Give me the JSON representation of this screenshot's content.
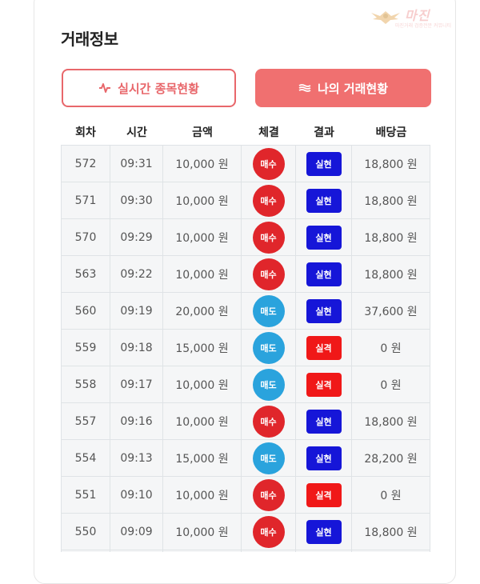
{
  "watermark": {
    "text": "마진",
    "sub": "마진거래 검증전문 커뮤니티"
  },
  "section_title": "거래정보",
  "buttons": {
    "live_label": "실시간 종목현황",
    "mine_label": "나의 거래현황"
  },
  "columns": [
    "회차",
    "시간",
    "금액",
    "체결",
    "결과",
    "배당금"
  ],
  "colors": {
    "buy": "#e0262b",
    "sell": "#2aa3dd",
    "win": "#1616d8",
    "lose": "#f01818",
    "accent": "#f07070"
  },
  "rows": [
    {
      "round": "572",
      "time": "09:31",
      "amount": "10,000 원",
      "trade": "매수",
      "trade_type": "buy",
      "result": "실현",
      "result_type": "win",
      "payout": "18,800 원"
    },
    {
      "round": "571",
      "time": "09:30",
      "amount": "10,000 원",
      "trade": "매수",
      "trade_type": "buy",
      "result": "실현",
      "result_type": "win",
      "payout": "18,800 원"
    },
    {
      "round": "570",
      "time": "09:29",
      "amount": "10,000 원",
      "trade": "매수",
      "trade_type": "buy",
      "result": "실현",
      "result_type": "win",
      "payout": "18,800 원"
    },
    {
      "round": "563",
      "time": "09:22",
      "amount": "10,000 원",
      "trade": "매수",
      "trade_type": "buy",
      "result": "실현",
      "result_type": "win",
      "payout": "18,800 원"
    },
    {
      "round": "560",
      "time": "09:19",
      "amount": "20,000 원",
      "trade": "매도",
      "trade_type": "sell",
      "result": "실현",
      "result_type": "win",
      "payout": "37,600 원"
    },
    {
      "round": "559",
      "time": "09:18",
      "amount": "15,000 원",
      "trade": "매도",
      "trade_type": "sell",
      "result": "실격",
      "result_type": "lose",
      "payout": "0 원"
    },
    {
      "round": "558",
      "time": "09:17",
      "amount": "10,000 원",
      "trade": "매도",
      "trade_type": "sell",
      "result": "실격",
      "result_type": "lose",
      "payout": "0 원"
    },
    {
      "round": "557",
      "time": "09:16",
      "amount": "10,000 원",
      "trade": "매수",
      "trade_type": "buy",
      "result": "실현",
      "result_type": "win",
      "payout": "18,800 원"
    },
    {
      "round": "554",
      "time": "09:13",
      "amount": "15,000 원",
      "trade": "매도",
      "trade_type": "sell",
      "result": "실현",
      "result_type": "win",
      "payout": "28,200 원"
    },
    {
      "round": "551",
      "time": "09:10",
      "amount": "10,000 원",
      "trade": "매수",
      "trade_type": "buy",
      "result": "실격",
      "result_type": "lose",
      "payout": "0 원"
    },
    {
      "round": "550",
      "time": "09:09",
      "amount": "10,000 원",
      "trade": "매수",
      "trade_type": "buy",
      "result": "실현",
      "result_type": "win",
      "payout": "18,800 원"
    },
    {
      "round": "",
      "time": "",
      "amount": "",
      "trade": "",
      "trade_type": "buy",
      "result": "",
      "result_type": "",
      "payout": ""
    }
  ]
}
